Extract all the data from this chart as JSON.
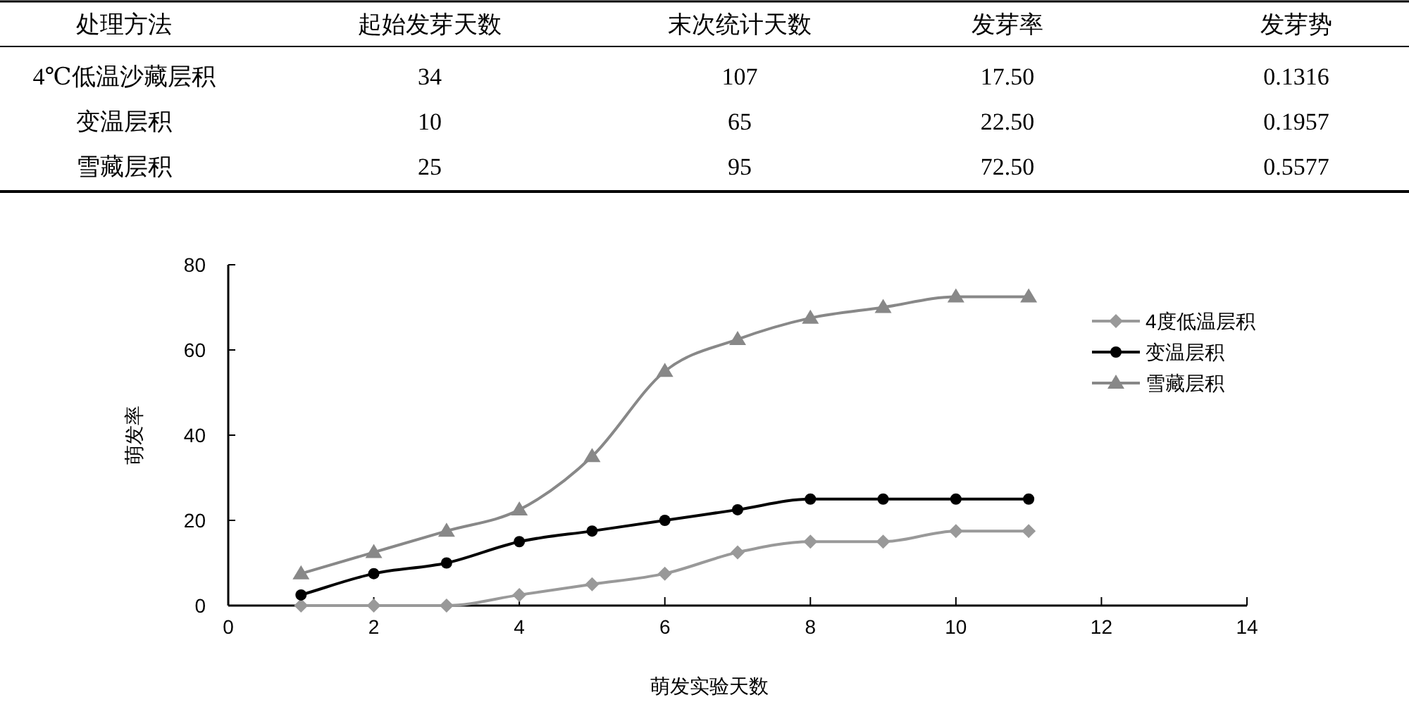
{
  "chart_data": [
    {
      "type": "other",
      "categories": [
        "处理方法",
        "起始发芽天数",
        "末次统计天数",
        "发芽率",
        "发芽势"
      ],
      "y_categories": [
        "4℃低温沙藏层积",
        "变温层积",
        "雪藏层积"
      ],
      "cell_labels": [
        [
          "34",
          "107",
          "17.50",
          "0.1316"
        ],
        [
          "10",
          "65",
          "22.50",
          "0.1957"
        ],
        [
          "25",
          "95",
          "72.50",
          "0.5577"
        ]
      ]
    },
    {
      "type": "line",
      "x": [
        1,
        2,
        3,
        4,
        5,
        6,
        7,
        8,
        9,
        10,
        11
      ],
      "xlabel": "萌发实验天数",
      "ylabel": "萌发率",
      "xlim": [
        0,
        14
      ],
      "xticks": [
        0,
        2,
        4,
        6,
        8,
        10,
        12,
        14
      ],
      "ylim": [
        0,
        80
      ],
      "yticks": [
        0,
        20,
        40,
        60,
        80
      ],
      "grid": false,
      "legend": "right",
      "line_style": "solid",
      "series": [
        {
          "name": "4度低温层积",
          "color": "#999999",
          "marker": "diamond",
          "values": [
            0,
            0,
            0,
            2.5,
            5,
            7.5,
            12.5,
            15,
            15,
            17.5,
            17.5
          ]
        },
        {
          "name": "变温层积",
          "color": "#000000",
          "marker": "circle",
          "values": [
            2.5,
            7.5,
            10,
            15,
            17.5,
            20,
            22.5,
            25,
            25,
            25,
            25
          ]
        },
        {
          "name": "雪藏层积",
          "color": "#888888",
          "marker": "triangle",
          "values": [
            7.5,
            12.5,
            17.5,
            22.5,
            35,
            55,
            62.5,
            67.5,
            70,
            72.5,
            72.5
          ]
        }
      ]
    }
  ]
}
